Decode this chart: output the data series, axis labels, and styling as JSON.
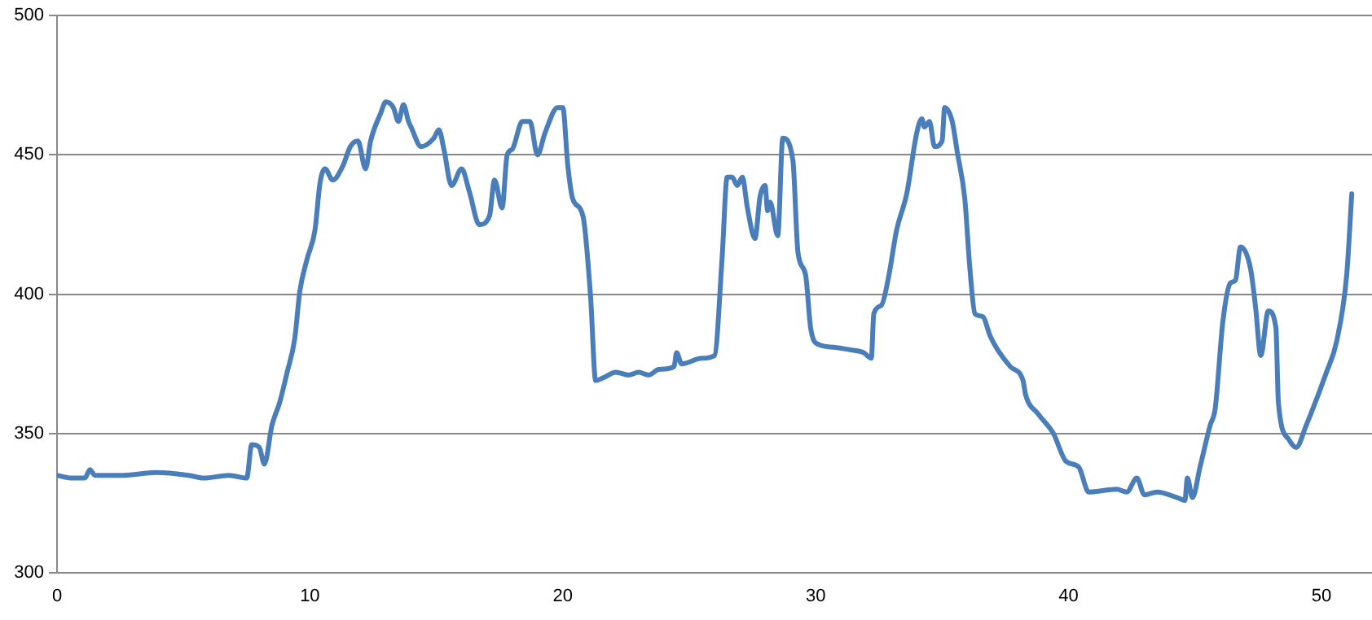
{
  "chart_data": {
    "type": "line",
    "color": "#4a7ebb",
    "xlim": [
      0,
      52
    ],
    "xticks": [
      0,
      10,
      20,
      30,
      40,
      50
    ],
    "ylim": [
      300,
      500
    ],
    "yticks": [
      300,
      350,
      400,
      450,
      500
    ],
    "grid": "y",
    "legend": false,
    "marker": "none",
    "x": [
      0.0,
      0.6,
      1.1,
      1.3,
      1.5,
      2.6,
      3.9,
      5.2,
      5.8,
      6.8,
      7.5,
      7.7,
      8.0,
      8.2,
      8.5,
      8.8,
      9.1,
      9.4,
      9.6,
      9.9,
      10.2,
      10.4,
      10.6,
      10.9,
      11.3,
      11.6,
      11.9,
      12.2,
      12.4,
      12.8,
      13.0,
      13.3,
      13.5,
      13.7,
      13.9,
      14.0,
      14.4,
      14.9,
      15.1,
      15.3,
      15.6,
      16.0,
      16.3,
      16.7,
      17.1,
      17.3,
      17.6,
      17.8,
      18.0,
      18.4,
      18.7,
      19.0,
      19.3,
      19.8,
      20.0,
      20.2,
      20.4,
      20.8,
      21.1,
      21.3,
      21.6,
      22.1,
      22.6,
      23.0,
      23.4,
      23.8,
      24.4,
      24.5,
      24.7,
      25.5,
      26.0,
      26.3,
      26.5,
      26.7,
      26.9,
      27.1,
      27.3,
      27.6,
      27.8,
      28.0,
      28.1,
      28.2,
      28.5,
      28.7,
      29.1,
      29.3,
      29.6,
      29.8,
      30.1,
      30.7,
      31.4,
      31.9,
      32.2,
      32.3,
      32.6,
      32.9,
      33.2,
      33.6,
      34.0,
      34.2,
      34.3,
      34.5,
      34.7,
      35.0,
      35.1,
      35.4,
      35.6,
      35.9,
      36.1,
      36.3,
      36.6,
      36.9,
      37.2,
      37.7,
      38.2,
      38.3,
      38.8,
      39.4,
      39.9,
      40.4,
      40.8,
      41.9,
      42.3,
      42.7,
      43.0,
      43.5,
      44.3,
      44.6,
      44.7,
      44.9,
      45.2,
      45.6,
      45.8,
      46.1,
      46.4,
      46.6,
      46.8,
      47.2,
      47.4,
      47.6,
      47.9,
      48.2,
      48.3,
      48.7,
      49.0,
      49.4,
      50.2,
      50.6,
      51.0,
      51.2
    ],
    "values": [
      335,
      334,
      334,
      337,
      335,
      335,
      336,
      335,
      334,
      335,
      334,
      346,
      345,
      339,
      353,
      361,
      372,
      384,
      401,
      413,
      423,
      440,
      445,
      441,
      446,
      453,
      455,
      445,
      455,
      465,
      469,
      467,
      462,
      468,
      462,
      460,
      453,
      456,
      459,
      452,
      439,
      445,
      437,
      425,
      428,
      441,
      431,
      450,
      452,
      462,
      462,
      450,
      458,
      467,
      467,
      446,
      434,
      428,
      399,
      369,
      370,
      372,
      371,
      372,
      371,
      373,
      374,
      379,
      375,
      377,
      378,
      413,
      442,
      442,
      439,
      442,
      431,
      420,
      435,
      439,
      430,
      433,
      421,
      456,
      448,
      415,
      407,
      388,
      382,
      381,
      380,
      379,
      377,
      393,
      396,
      407,
      423,
      436,
      458,
      463,
      460,
      462,
      453,
      455,
      467,
      462,
      451,
      434,
      409,
      393,
      392,
      385,
      380,
      374,
      369,
      364,
      357,
      350,
      340,
      338,
      329,
      330,
      329,
      334,
      328,
      329,
      327,
      326,
      334,
      327,
      338,
      353,
      359,
      390,
      404,
      405,
      417,
      409,
      395,
      378,
      394,
      388,
      361,
      348,
      345,
      353,
      372,
      383,
      407,
      436
    ]
  }
}
